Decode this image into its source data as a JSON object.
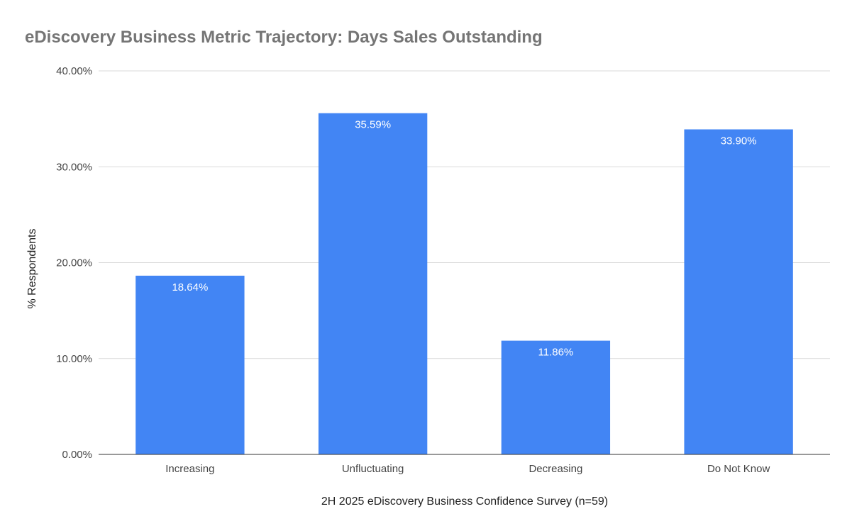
{
  "chart_data": {
    "type": "bar",
    "title": "eDiscovery Business Metric Trajectory: Days Sales Outstanding",
    "xlabel": "2H 2025 eDiscovery Business Confidence Survey (n=59)",
    "ylabel": "% Respondents",
    "categories": [
      "Increasing",
      "Unfluctuating",
      "Decreasing",
      "Do Not Know"
    ],
    "values": [
      18.64,
      35.59,
      11.86,
      33.9
    ],
    "data_labels": [
      "18.64%",
      "35.59%",
      "11.86%",
      "33.90%"
    ],
    "ylim": [
      0,
      40
    ],
    "y_ticks": [
      0,
      10,
      20,
      30,
      40
    ],
    "y_tick_labels": [
      "0.00%",
      "10.00%",
      "20.00%",
      "30.00%",
      "40.00%"
    ],
    "grid": true,
    "legend": "none",
    "colors": {
      "bar": "#4285F4",
      "title": "#757575",
      "grid": "#D9D9D9"
    }
  }
}
